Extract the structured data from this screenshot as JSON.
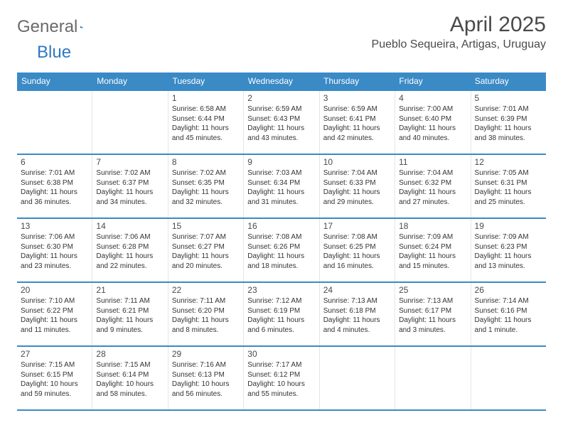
{
  "brand": {
    "part1": "General",
    "part2": "Blue"
  },
  "title": "April 2025",
  "location": "Pueblo Sequeira, Artigas, Uruguay",
  "colors": {
    "brand_blue": "#2f78c2",
    "header_bg": "#3a8ac6",
    "text": "#4a4a4a",
    "body_text": "#333333",
    "cell_border": "#e6e6e6",
    "background": "#ffffff"
  },
  "day_headers": [
    "Sunday",
    "Monday",
    "Tuesday",
    "Wednesday",
    "Thursday",
    "Friday",
    "Saturday"
  ],
  "weeks": [
    [
      {
        "n": "",
        "rise": "",
        "set": "",
        "day": ""
      },
      {
        "n": "",
        "rise": "",
        "set": "",
        "day": ""
      },
      {
        "n": "1",
        "rise": "Sunrise: 6:58 AM",
        "set": "Sunset: 6:44 PM",
        "day": "Daylight: 11 hours and 45 minutes."
      },
      {
        "n": "2",
        "rise": "Sunrise: 6:59 AM",
        "set": "Sunset: 6:43 PM",
        "day": "Daylight: 11 hours and 43 minutes."
      },
      {
        "n": "3",
        "rise": "Sunrise: 6:59 AM",
        "set": "Sunset: 6:41 PM",
        "day": "Daylight: 11 hours and 42 minutes."
      },
      {
        "n": "4",
        "rise": "Sunrise: 7:00 AM",
        "set": "Sunset: 6:40 PM",
        "day": "Daylight: 11 hours and 40 minutes."
      },
      {
        "n": "5",
        "rise": "Sunrise: 7:01 AM",
        "set": "Sunset: 6:39 PM",
        "day": "Daylight: 11 hours and 38 minutes."
      }
    ],
    [
      {
        "n": "6",
        "rise": "Sunrise: 7:01 AM",
        "set": "Sunset: 6:38 PM",
        "day": "Daylight: 11 hours and 36 minutes."
      },
      {
        "n": "7",
        "rise": "Sunrise: 7:02 AM",
        "set": "Sunset: 6:37 PM",
        "day": "Daylight: 11 hours and 34 minutes."
      },
      {
        "n": "8",
        "rise": "Sunrise: 7:02 AM",
        "set": "Sunset: 6:35 PM",
        "day": "Daylight: 11 hours and 32 minutes."
      },
      {
        "n": "9",
        "rise": "Sunrise: 7:03 AM",
        "set": "Sunset: 6:34 PM",
        "day": "Daylight: 11 hours and 31 minutes."
      },
      {
        "n": "10",
        "rise": "Sunrise: 7:04 AM",
        "set": "Sunset: 6:33 PM",
        "day": "Daylight: 11 hours and 29 minutes."
      },
      {
        "n": "11",
        "rise": "Sunrise: 7:04 AM",
        "set": "Sunset: 6:32 PM",
        "day": "Daylight: 11 hours and 27 minutes."
      },
      {
        "n": "12",
        "rise": "Sunrise: 7:05 AM",
        "set": "Sunset: 6:31 PM",
        "day": "Daylight: 11 hours and 25 minutes."
      }
    ],
    [
      {
        "n": "13",
        "rise": "Sunrise: 7:06 AM",
        "set": "Sunset: 6:30 PM",
        "day": "Daylight: 11 hours and 23 minutes."
      },
      {
        "n": "14",
        "rise": "Sunrise: 7:06 AM",
        "set": "Sunset: 6:28 PM",
        "day": "Daylight: 11 hours and 22 minutes."
      },
      {
        "n": "15",
        "rise": "Sunrise: 7:07 AM",
        "set": "Sunset: 6:27 PM",
        "day": "Daylight: 11 hours and 20 minutes."
      },
      {
        "n": "16",
        "rise": "Sunrise: 7:08 AM",
        "set": "Sunset: 6:26 PM",
        "day": "Daylight: 11 hours and 18 minutes."
      },
      {
        "n": "17",
        "rise": "Sunrise: 7:08 AM",
        "set": "Sunset: 6:25 PM",
        "day": "Daylight: 11 hours and 16 minutes."
      },
      {
        "n": "18",
        "rise": "Sunrise: 7:09 AM",
        "set": "Sunset: 6:24 PM",
        "day": "Daylight: 11 hours and 15 minutes."
      },
      {
        "n": "19",
        "rise": "Sunrise: 7:09 AM",
        "set": "Sunset: 6:23 PM",
        "day": "Daylight: 11 hours and 13 minutes."
      }
    ],
    [
      {
        "n": "20",
        "rise": "Sunrise: 7:10 AM",
        "set": "Sunset: 6:22 PM",
        "day": "Daylight: 11 hours and 11 minutes."
      },
      {
        "n": "21",
        "rise": "Sunrise: 7:11 AM",
        "set": "Sunset: 6:21 PM",
        "day": "Daylight: 11 hours and 9 minutes."
      },
      {
        "n": "22",
        "rise": "Sunrise: 7:11 AM",
        "set": "Sunset: 6:20 PM",
        "day": "Daylight: 11 hours and 8 minutes."
      },
      {
        "n": "23",
        "rise": "Sunrise: 7:12 AM",
        "set": "Sunset: 6:19 PM",
        "day": "Daylight: 11 hours and 6 minutes."
      },
      {
        "n": "24",
        "rise": "Sunrise: 7:13 AM",
        "set": "Sunset: 6:18 PM",
        "day": "Daylight: 11 hours and 4 minutes."
      },
      {
        "n": "25",
        "rise": "Sunrise: 7:13 AM",
        "set": "Sunset: 6:17 PM",
        "day": "Daylight: 11 hours and 3 minutes."
      },
      {
        "n": "26",
        "rise": "Sunrise: 7:14 AM",
        "set": "Sunset: 6:16 PM",
        "day": "Daylight: 11 hours and 1 minute."
      }
    ],
    [
      {
        "n": "27",
        "rise": "Sunrise: 7:15 AM",
        "set": "Sunset: 6:15 PM",
        "day": "Daylight: 10 hours and 59 minutes."
      },
      {
        "n": "28",
        "rise": "Sunrise: 7:15 AM",
        "set": "Sunset: 6:14 PM",
        "day": "Daylight: 10 hours and 58 minutes."
      },
      {
        "n": "29",
        "rise": "Sunrise: 7:16 AM",
        "set": "Sunset: 6:13 PM",
        "day": "Daylight: 10 hours and 56 minutes."
      },
      {
        "n": "30",
        "rise": "Sunrise: 7:17 AM",
        "set": "Sunset: 6:12 PM",
        "day": "Daylight: 10 hours and 55 minutes."
      },
      {
        "n": "",
        "rise": "",
        "set": "",
        "day": ""
      },
      {
        "n": "",
        "rise": "",
        "set": "",
        "day": ""
      },
      {
        "n": "",
        "rise": "",
        "set": "",
        "day": ""
      }
    ]
  ]
}
